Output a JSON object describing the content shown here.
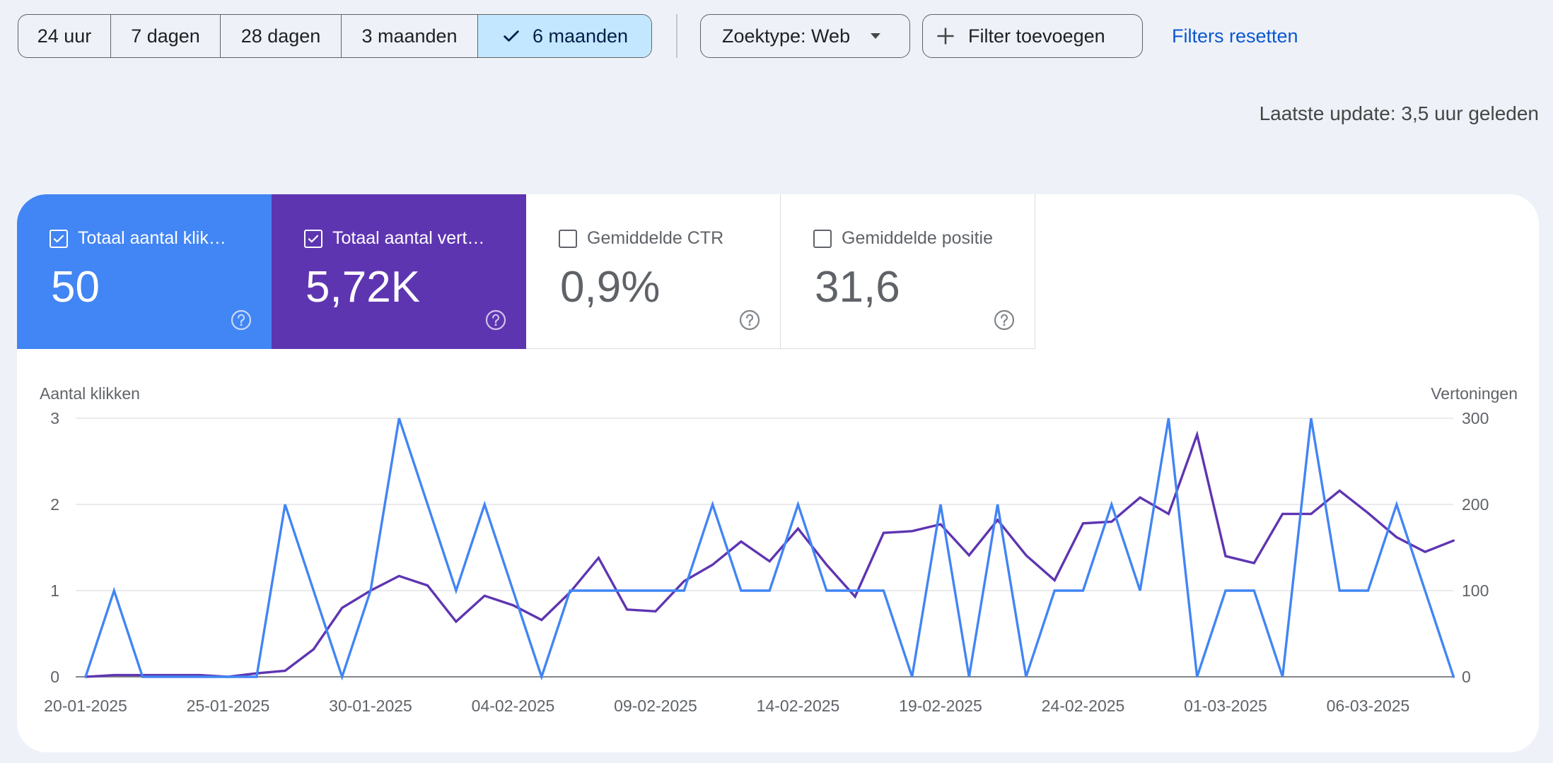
{
  "toolbar": {
    "ranges": [
      "24 uur",
      "7 dagen",
      "28 dagen",
      "3 maanden",
      "6 maanden"
    ],
    "active_range": "6 maanden",
    "search_type": "Zoektype: Web",
    "add_filter": "Filter toevoegen",
    "reset_filters": "Filters resetten"
  },
  "last_update": "Laatste update: 3,5 uur geleden",
  "metrics": [
    {
      "label": "Totaal aantal klik…",
      "value": "50",
      "checked": true,
      "color": "#4285f4"
    },
    {
      "label": "Totaal aantal vert…",
      "value": "5,72K",
      "checked": true,
      "color": "#5e35b1"
    },
    {
      "label": "Gemiddelde CTR",
      "value": "0,9%",
      "checked": false
    },
    {
      "label": "Gemiddelde positie",
      "value": "31,6",
      "checked": false
    }
  ],
  "icons": {
    "check": "check-icon",
    "caret": "arrow-drop-down-icon",
    "plus": "plus-icon",
    "checkbox": "checkbox-icon",
    "help": "help-circle-icon"
  },
  "chart_data": {
    "type": "line",
    "left_axis_label": "Aantal klikken",
    "right_axis_label": "Vertoningen",
    "left_ticks": [
      "0",
      "1",
      "2",
      "3"
    ],
    "right_ticks": [
      "0",
      "100",
      "200",
      "300"
    ],
    "left_range": [
      0,
      3
    ],
    "right_range": [
      0,
      300
    ],
    "x_tick_labels": [
      "20-01-2025",
      "25-01-2025",
      "30-01-2025",
      "04-02-2025",
      "09-02-2025",
      "14-02-2025",
      "19-02-2025",
      "24-02-2025",
      "01-03-2025",
      "06-03-2025"
    ],
    "x_start": "20-01-2025",
    "x_end": "10-03-2025",
    "grid": true,
    "series": [
      {
        "name": "Totaal aantal klikken",
        "axis": "left",
        "color": "#4285f4",
        "values": [
          0,
          1,
          0,
          0,
          0,
          0,
          0,
          2,
          1,
          0,
          1,
          3,
          2,
          1,
          2,
          1,
          0,
          1,
          1,
          1,
          1,
          1,
          2,
          1,
          1,
          2,
          1,
          1,
          1,
          0,
          2,
          0,
          2,
          0,
          1,
          1,
          2,
          1,
          3,
          0,
          1,
          1,
          0,
          3,
          1,
          1,
          2,
          1,
          0
        ]
      },
      {
        "name": "Totaal aantal vertoningen",
        "axis": "right",
        "color": "#5e35b1",
        "values": [
          0,
          2,
          2,
          2,
          2,
          0,
          4,
          7,
          32,
          80,
          100,
          117,
          106,
          64,
          94,
          83,
          66,
          98,
          138,
          78,
          76,
          111,
          130,
          157,
          134,
          172,
          130,
          93,
          167,
          169,
          177,
          141,
          182,
          141,
          112,
          178,
          180,
          208,
          189,
          281,
          140,
          132,
          189,
          189,
          216,
          190,
          162,
          145,
          158
        ]
      }
    ]
  }
}
